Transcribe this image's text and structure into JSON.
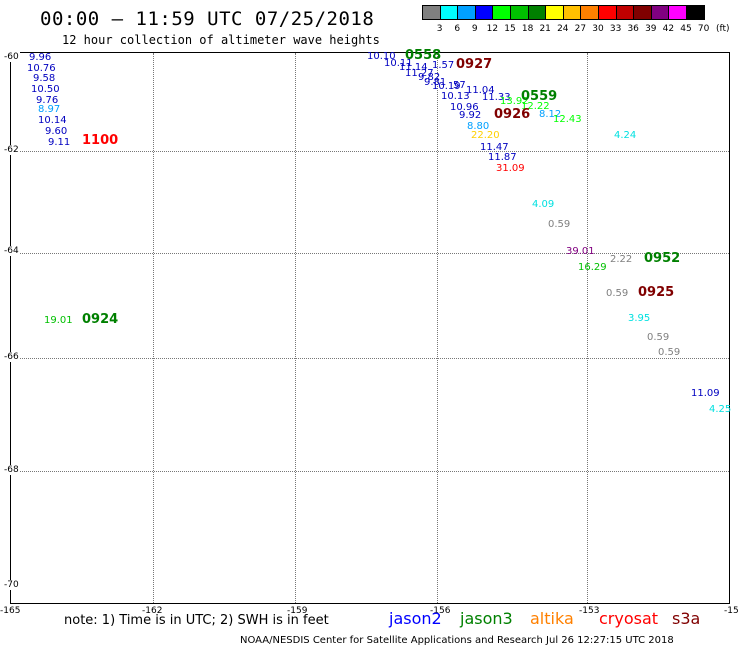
{
  "header": {
    "title": "00:00 – 11:59 UTC 07/25/2018",
    "subtitle": "12 hour collection of altimeter wave heights"
  },
  "legend": {
    "unit": "(ft)",
    "bins": [
      {
        "label": "3",
        "color": "#808080"
      },
      {
        "label": "6",
        "color": "#00ffff"
      },
      {
        "label": "9",
        "color": "#00a0ff"
      },
      {
        "label": "12",
        "color": "#0000ff"
      },
      {
        "label": "15",
        "color": "#00ff00"
      },
      {
        "label": "18",
        "color": "#00c000"
      },
      {
        "label": "21",
        "color": "#008000"
      },
      {
        "label": "24",
        "color": "#ffff00"
      },
      {
        "label": "27",
        "color": "#ffc000"
      },
      {
        "label": "30",
        "color": "#ff8000"
      },
      {
        "label": "33",
        "color": "#ff0000"
      },
      {
        "label": "36",
        "color": "#c00000"
      },
      {
        "label": "39",
        "color": "#800000"
      },
      {
        "label": "42",
        "color": "#800080"
      },
      {
        "label": "45",
        "color": "#ff00ff"
      },
      {
        "label": "70",
        "color": "#000000"
      }
    ]
  },
  "map": {
    "lat_labels": [
      "-60",
      "-62",
      "-64",
      "-66",
      "-68",
      "-70"
    ],
    "lon_labels": [
      "-165",
      "-162",
      "-159",
      "-156",
      "-153",
      "-15"
    ],
    "observations": [
      {
        "text": "9.96",
        "color": "#0000c0"
      },
      {
        "text": "10.76",
        "color": "#0000c0"
      },
      {
        "text": "9.58",
        "color": "#0000c0"
      },
      {
        "text": "10.50",
        "color": "#0000c0"
      },
      {
        "text": "9.76",
        "color": "#0000c0"
      },
      {
        "text": "8.97",
        "color": "#00a0ff"
      },
      {
        "text": "10.14",
        "color": "#0000c0"
      },
      {
        "text": "9.60",
        "color": "#0000c0"
      },
      {
        "text": "9.11",
        "color": "#0000c0"
      },
      {
        "text": "10.10",
        "color": "#0000c0"
      },
      {
        "text": "10.11",
        "color": "#0000c0"
      },
      {
        "text": "11.14",
        "color": "#0000c0"
      },
      {
        "text": "1.57",
        "color": "#0000c0"
      },
      {
        "text": "11.27",
        "color": "#0000c0"
      },
      {
        "text": "9.82",
        "color": "#0000c0"
      },
      {
        "text": "9.81",
        "color": "#0000c0"
      },
      {
        "text": "10.19",
        "color": "#0000c0"
      },
      {
        "text": "57",
        "color": "#0000c0"
      },
      {
        "text": "11.04",
        "color": "#0000c0"
      },
      {
        "text": "10.13",
        "color": "#0000c0"
      },
      {
        "text": "11.33",
        "color": "#0000c0"
      },
      {
        "text": "13.92",
        "color": "#00ff00"
      },
      {
        "text": "12.22",
        "color": "#00ff00"
      },
      {
        "text": "10.96",
        "color": "#0000c0"
      },
      {
        "text": "8.12",
        "color": "#00a0ff"
      },
      {
        "text": "12.43",
        "color": "#00ff00"
      },
      {
        "text": "9.92",
        "color": "#0000c0"
      },
      {
        "text": "8.80",
        "color": "#00a0ff"
      },
      {
        "text": "22.20",
        "color": "#ffd000"
      },
      {
        "text": "11.47",
        "color": "#0000c0"
      },
      {
        "text": "11.87",
        "color": "#0000c0"
      },
      {
        "text": "31.09",
        "color": "#ff0000"
      },
      {
        "text": "4.24",
        "color": "#00e0e0"
      },
      {
        "text": "4.09",
        "color": "#00e0e0"
      },
      {
        "text": "0.59",
        "color": "#808080"
      },
      {
        "text": "39.01",
        "color": "#800080"
      },
      {
        "text": "2.22",
        "color": "#808080"
      },
      {
        "text": "16.29",
        "color": "#00c000"
      },
      {
        "text": "0.59",
        "color": "#808080"
      },
      {
        "text": "19.01",
        "color": "#00c000"
      },
      {
        "text": "3.95",
        "color": "#00e0e0"
      },
      {
        "text": "0.59",
        "color": "#808080"
      },
      {
        "text": "0.59",
        "color": "#808080"
      },
      {
        "text": "11.09",
        "color": "#0000c0"
      },
      {
        "text": "4.25",
        "color": "#00e0e0"
      }
    ],
    "time_labels": [
      {
        "text": "1100",
        "color": "#ff0000"
      },
      {
        "text": "0558",
        "color": "#008000"
      },
      {
        "text": "0927",
        "color": "#800000"
      },
      {
        "text": "0559",
        "color": "#008000"
      },
      {
        "text": "0926",
        "color": "#800000"
      },
      {
        "text": "0952",
        "color": "#008000"
      },
      {
        "text": "0925",
        "color": "#800000"
      },
      {
        "text": "0924",
        "color": "#008000"
      }
    ]
  },
  "footer": {
    "note": "note:  1) Time is in UTC;  2) SWH is in feet",
    "satellites": [
      {
        "name": "jason2",
        "color": "#0000ff"
      },
      {
        "name": "jason3",
        "color": "#008000"
      },
      {
        "name": "altika",
        "color": "#ff8000"
      },
      {
        "name": "cryosat",
        "color": "#ff0000"
      },
      {
        "name": "s3a",
        "color": "#800000"
      }
    ],
    "credit": "NOAA/NESDIS Center for Satellite Applications and Research     Jul 26 12:27:15 UTC 2018"
  }
}
